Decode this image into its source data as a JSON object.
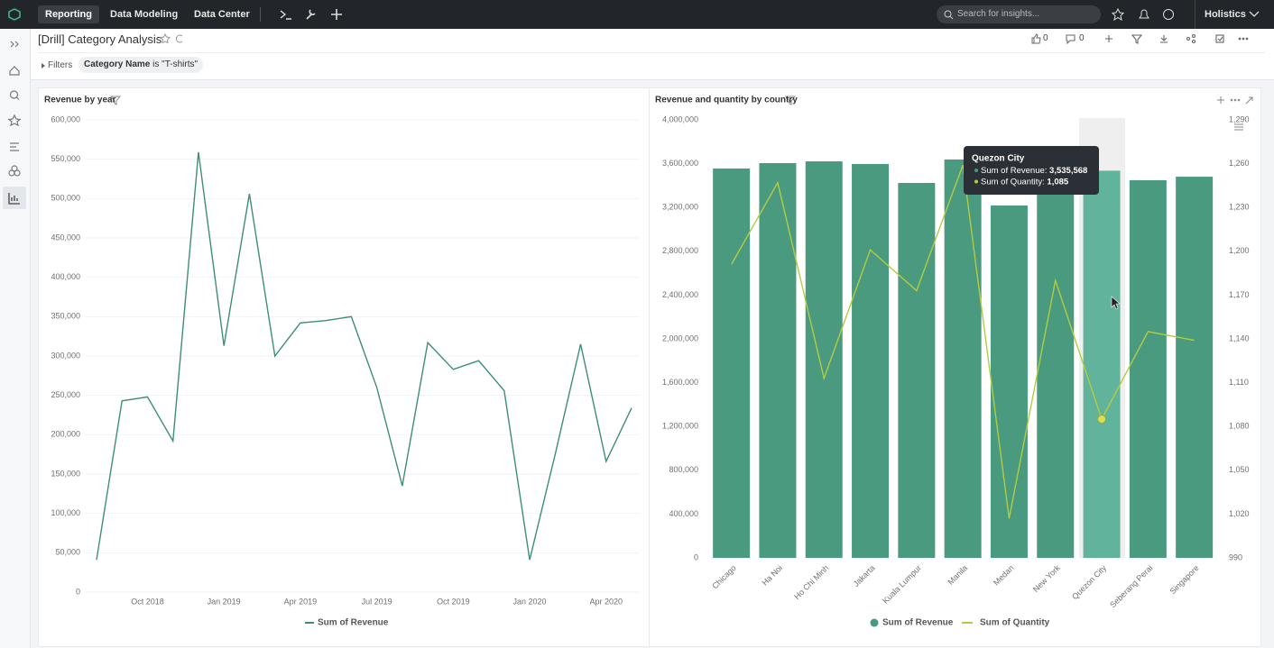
{
  "nav": {
    "items": [
      "Reporting",
      "Data Modeling",
      "Data Center"
    ],
    "search": "Search for insights...",
    "user": "Holistics"
  },
  "header": {
    "title": "[Drill] Category Analysis",
    "likes": 0,
    "comments": 0
  },
  "filters": {
    "label": "Filters",
    "field": "Category Name",
    "operator": "is",
    "value": "\"T-shirts\""
  },
  "chart_data": [
    {
      "type": "line",
      "title": "Revenue by year",
      "legend": "bottom",
      "grid": true,
      "categories": [
        null,
        null,
        "Oct 2018",
        null,
        null,
        "Jan 2019",
        null,
        null,
        "Apr 2019",
        null,
        null,
        "Jul 2019",
        null,
        null,
        "Oct 2019",
        null,
        null,
        "Jan 2020",
        null,
        null,
        "Apr 2020",
        null
      ],
      "series": [
        {
          "name": "Sum of Revenue",
          "color": "#3d8f72",
          "values": [
            41000,
            243000,
            248000,
            192000,
            559000,
            313000,
            506000,
            300000,
            342000,
            345000,
            350000,
            260000,
            135000,
            317000,
            283000,
            294000,
            256000,
            41000,
            175000,
            315000,
            166000,
            234000
          ]
        }
      ],
      "ylim": [
        0,
        600000
      ],
      "yticks": [
        0,
        {
          "value": 50000,
          "label": "50,000"
        },
        {
          "value": 100000,
          "label": "100,000"
        },
        {
          "value": 150000,
          "label": "150,000"
        },
        {
          "value": 200000,
          "label": "200,000"
        },
        {
          "value": 250000,
          "label": "250,000"
        },
        {
          "value": 300000,
          "label": "300,000"
        },
        {
          "value": 350000,
          "label": "350,000"
        },
        {
          "value": 400000,
          "label": "400,000"
        },
        {
          "value": 450000,
          "label": "450,000"
        },
        {
          "value": 500000,
          "label": "500,000"
        },
        {
          "value": 550000,
          "label": "550,000"
        },
        {
          "value": 600000,
          "label": "600,000"
        }
      ]
    },
    {
      "type": "combo",
      "title": "Revenue and quantity by country",
      "legend": "bottom",
      "categories": [
        "Chicago",
        "Ha Noi",
        "Ho Chi Minh",
        "Jakarta",
        "Kuala Lumpur",
        "Manila",
        "Medan",
        "New York",
        "Quezon City",
        "Seberang Perai",
        "Singapore"
      ],
      "series": [
        {
          "name": "Sum of Revenue",
          "type": "bar",
          "color": "#4a9a80",
          "values": [
            3556000,
            3605000,
            3621000,
            3597000,
            3424000,
            3638000,
            3218000,
            3560000,
            3535568,
            3449000,
            3481000
          ]
        },
        {
          "name": "Sum of Quantity",
          "type": "line",
          "axis": "y2",
          "color": "#b3cc3f",
          "values": [
            1191,
            1247,
            1113,
            1201,
            1173,
            1259,
            1017,
            1180,
            1085,
            1145,
            1139
          ]
        }
      ],
      "ylim": [
        0,
        4000000
      ],
      "yticks": [
        0,
        {
          "value": 400000,
          "label": "400,000"
        },
        {
          "value": 800000,
          "label": "800,000"
        },
        {
          "value": 1200000,
          "label": "1,200,000"
        },
        {
          "value": 1600000,
          "label": "1,600,000"
        },
        {
          "value": 2000000,
          "label": "2,000,000"
        },
        {
          "value": 2400000,
          "label": "2,400,000"
        },
        {
          "value": 2800000,
          "label": "2,800,000"
        },
        {
          "value": 3200000,
          "label": "3,200,000"
        },
        {
          "value": 3600000,
          "label": "3,600,000"
        },
        {
          "value": 4000000,
          "label": "4,000,000"
        }
      ],
      "y2lim": [
        990,
        1290
      ],
      "y2ticks": [
        990,
        {
          "value": 1020,
          "label": "1,020"
        },
        {
          "value": 1050,
          "label": "1,050"
        },
        {
          "value": 1080,
          "label": "1,080"
        },
        {
          "value": 1110,
          "label": "1,110"
        },
        {
          "value": 1140,
          "label": "1,140"
        },
        {
          "value": 1170,
          "label": "1,170"
        },
        {
          "value": 1200,
          "label": "1,200"
        },
        {
          "value": 1230,
          "label": "1,230"
        },
        {
          "value": 1260,
          "label": "1,260"
        },
        {
          "value": 1290,
          "label": "1,290"
        }
      ],
      "tooltip": {
        "title": "Quezon City",
        "values": [
          "3,535,568",
          "1,085"
        ]
      }
    }
  ]
}
